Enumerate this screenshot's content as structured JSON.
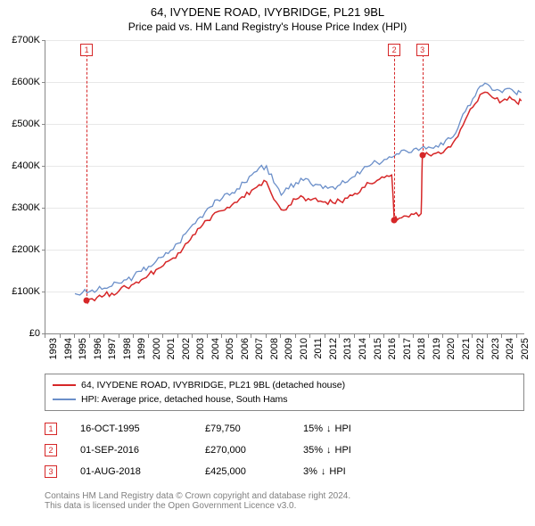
{
  "title": "64, IVYDENE ROAD, IVYBRIDGE, PL21 9BL",
  "subtitle": "Price paid vs. HM Land Registry's House Price Index (HPI)",
  "chart": {
    "type": "line",
    "background_color": "#ffffff",
    "grid_color": "#e8e8e8",
    "axis_color": "#888888",
    "label_fontsize": 11,
    "yaxis": {
      "min": 0,
      "max": 700000,
      "step": 100000,
      "format_prefix": "£",
      "format_suffix": "K",
      "ticks": [
        0,
        100000,
        200000,
        300000,
        400000,
        500000,
        600000,
        700000
      ],
      "labels": [
        "£0",
        "£100K",
        "£200K",
        "£300K",
        "£400K",
        "£500K",
        "£600K",
        "£700K"
      ]
    },
    "xaxis": {
      "min": 1993,
      "max": 2025.5,
      "ticks": [
        1993,
        1994,
        1995,
        1996,
        1997,
        1998,
        1999,
        2000,
        2001,
        2002,
        2003,
        2004,
        2005,
        2006,
        2007,
        2008,
        2009,
        2010,
        2011,
        2012,
        2013,
        2014,
        2015,
        2016,
        2017,
        2018,
        2019,
        2020,
        2021,
        2022,
        2023,
        2024,
        2025
      ],
      "labels": [
        "1993",
        "1994",
        "1995",
        "1996",
        "1997",
        "1998",
        "1999",
        "2000",
        "2001",
        "2002",
        "2003",
        "2004",
        "2005",
        "2006",
        "2007",
        "2008",
        "2009",
        "2010",
        "2011",
        "2012",
        "2013",
        "2014",
        "2015",
        "2016",
        "2017",
        "2018",
        "2019",
        "2020",
        "2021",
        "2022",
        "2023",
        "2024",
        "2025"
      ]
    },
    "series": [
      {
        "id": "hpi",
        "label": "HPI: Average price, detached house, South Hams",
        "color": "#6b8fc9",
        "line_width": 1.3,
        "points": [
          [
            1995.0,
            95000
          ],
          [
            1995.5,
            97000
          ],
          [
            1996.0,
            100000
          ],
          [
            1996.5,
            103000
          ],
          [
            1997.0,
            108000
          ],
          [
            1997.5,
            113000
          ],
          [
            1998.0,
            120000
          ],
          [
            1998.5,
            128000
          ],
          [
            1999.0,
            137000
          ],
          [
            1999.5,
            148000
          ],
          [
            2000.0,
            160000
          ],
          [
            2000.5,
            172000
          ],
          [
            2001.0,
            183000
          ],
          [
            2001.5,
            198000
          ],
          [
            2002.0,
            215000
          ],
          [
            2002.5,
            238000
          ],
          [
            2003.0,
            260000
          ],
          [
            2003.5,
            278000
          ],
          [
            2004.0,
            298000
          ],
          [
            2004.5,
            318000
          ],
          [
            2005.0,
            323000
          ],
          [
            2005.5,
            330000
          ],
          [
            2006.0,
            345000
          ],
          [
            2006.5,
            360000
          ],
          [
            2007.0,
            378000
          ],
          [
            2007.5,
            395000
          ],
          [
            2008.0,
            400000
          ],
          [
            2008.5,
            360000
          ],
          [
            2009.0,
            330000
          ],
          [
            2009.5,
            345000
          ],
          [
            2010.0,
            360000
          ],
          [
            2010.5,
            365000
          ],
          [
            2011.0,
            358000
          ],
          [
            2011.5,
            355000
          ],
          [
            2012.0,
            352000
          ],
          [
            2012.5,
            350000
          ],
          [
            2013.0,
            355000
          ],
          [
            2013.5,
            362000
          ],
          [
            2014.0,
            375000
          ],
          [
            2014.5,
            390000
          ],
          [
            2015.0,
            400000
          ],
          [
            2015.5,
            408000
          ],
          [
            2016.0,
            415000
          ],
          [
            2016.5,
            420000
          ],
          [
            2017.0,
            428000
          ],
          [
            2017.5,
            435000
          ],
          [
            2018.0,
            440000
          ],
          [
            2018.5,
            442000
          ],
          [
            2019.0,
            445000
          ],
          [
            2019.5,
            448000
          ],
          [
            2020.0,
            450000
          ],
          [
            2020.5,
            465000
          ],
          [
            2021.0,
            490000
          ],
          [
            2021.5,
            530000
          ],
          [
            2022.0,
            560000
          ],
          [
            2022.5,
            590000
          ],
          [
            2023.0,
            595000
          ],
          [
            2023.5,
            580000
          ],
          [
            2024.0,
            575000
          ],
          [
            2024.5,
            585000
          ],
          [
            2025.0,
            570000
          ],
          [
            2025.3,
            575000
          ]
        ]
      },
      {
        "id": "property",
        "label": "64, IVYDENE ROAD, IVYBRIDGE, PL21 9BL (detached house)",
        "color": "#d62728",
        "line_width": 1.5,
        "points": [
          [
            1995.79,
            79750
          ],
          [
            1996.0,
            82000
          ],
          [
            1996.5,
            86000
          ],
          [
            1997.0,
            91000
          ],
          [
            1997.5,
            96000
          ],
          [
            1998.0,
            102000
          ],
          [
            1998.5,
            110000
          ],
          [
            1999.0,
            118000
          ],
          [
            1999.5,
            128000
          ],
          [
            2000.0,
            140000
          ],
          [
            2000.5,
            152000
          ],
          [
            2001.0,
            162000
          ],
          [
            2001.5,
            176000
          ],
          [
            2002.0,
            192000
          ],
          [
            2002.5,
            214000
          ],
          [
            2003.0,
            235000
          ],
          [
            2003.5,
            252000
          ],
          [
            2004.0,
            270000
          ],
          [
            2004.5,
            288000
          ],
          [
            2005.0,
            293000
          ],
          [
            2005.5,
            300000
          ],
          [
            2006.0,
            313000
          ],
          [
            2006.5,
            325000
          ],
          [
            2007.0,
            342000
          ],
          [
            2007.5,
            355000
          ],
          [
            2008.0,
            362000
          ],
          [
            2008.5,
            320000
          ],
          [
            2009.0,
            295000
          ],
          [
            2009.5,
            305000
          ],
          [
            2010.0,
            320000
          ],
          [
            2010.5,
            325000
          ],
          [
            2011.0,
            318000
          ],
          [
            2011.5,
            315000
          ],
          [
            2012.0,
            314000
          ],
          [
            2012.5,
            312000
          ],
          [
            2013.0,
            316000
          ],
          [
            2013.5,
            323000
          ],
          [
            2014.0,
            334000
          ],
          [
            2014.5,
            348000
          ],
          [
            2015.0,
            358000
          ],
          [
            2015.5,
            365000
          ],
          [
            2016.0,
            372000
          ],
          [
            2016.5,
            378000
          ],
          [
            2016.67,
            270000
          ],
          [
            2017.0,
            275000
          ],
          [
            2017.5,
            280000
          ],
          [
            2018.0,
            284000
          ],
          [
            2018.5,
            286000
          ],
          [
            2018.58,
            425000
          ],
          [
            2019.0,
            427000
          ],
          [
            2019.5,
            430000
          ],
          [
            2020.0,
            432000
          ],
          [
            2020.5,
            445000
          ],
          [
            2021.0,
            470000
          ],
          [
            2021.5,
            510000
          ],
          [
            2022.0,
            540000
          ],
          [
            2022.5,
            570000
          ],
          [
            2023.0,
            575000
          ],
          [
            2023.5,
            560000
          ],
          [
            2024.0,
            555000
          ],
          [
            2024.5,
            565000
          ],
          [
            2025.0,
            550000
          ],
          [
            2025.3,
            555000
          ]
        ]
      }
    ],
    "markers": [
      {
        "n": "1",
        "year": 1995.79,
        "value": 79750
      },
      {
        "n": "2",
        "year": 2016.67,
        "value": 270000
      },
      {
        "n": "3",
        "year": 2018.58,
        "value": 425000
      }
    ]
  },
  "legend": {
    "border_color": "#888888",
    "fontsize": 10.5,
    "items": [
      {
        "color": "#d62728",
        "label": "64, IVYDENE ROAD, IVYBRIDGE, PL21 9BL (detached house)"
      },
      {
        "color": "#6b8fc9",
        "label": "HPI: Average price, detached house, South Hams"
      }
    ]
  },
  "sales": [
    {
      "n": "1",
      "date": "16-OCT-1995",
      "price": "£79,750",
      "delta": "15%",
      "arrow": "↓",
      "vs": "HPI"
    },
    {
      "n": "2",
      "date": "01-SEP-2016",
      "price": "£270,000",
      "delta": "35%",
      "arrow": "↓",
      "vs": "HPI"
    },
    {
      "n": "3",
      "date": "01-AUG-2018",
      "price": "£425,000",
      "delta": "3%",
      "arrow": "↓",
      "vs": "HPI"
    }
  ],
  "footer": {
    "line1": "Contains HM Land Registry data © Crown copyright and database right 2024.",
    "line2": "This data is licensed under the Open Government Licence v3.0.",
    "color": "#808080"
  }
}
